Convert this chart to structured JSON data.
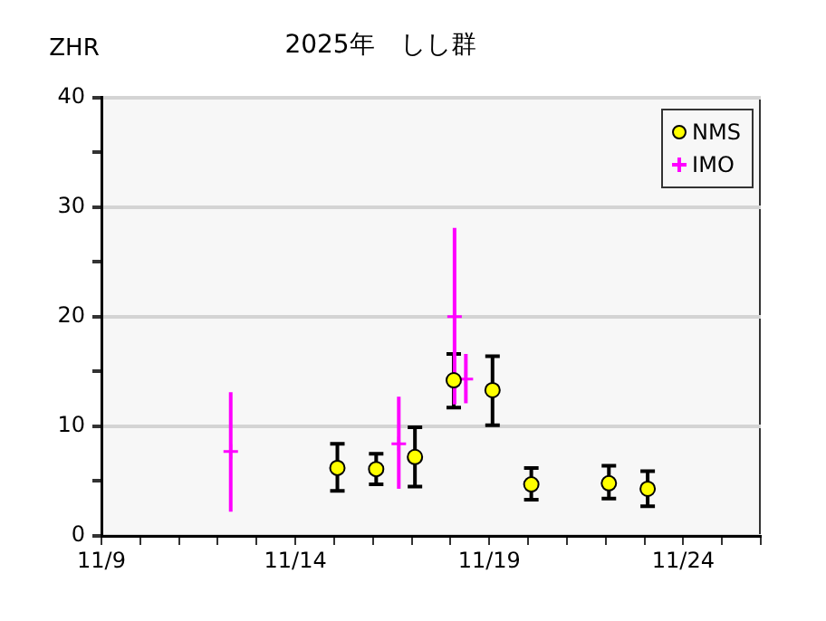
{
  "chart_data": {
    "type": "scatter",
    "title": "2025年　しし群",
    "ylabel": "ZHR",
    "xlim": [
      "--11-09",
      "--11-26"
    ],
    "xticks": [
      {
        "value": "--11-09",
        "label": "11/9"
      },
      {
        "value": "--11-10",
        "label": null
      },
      {
        "value": "--11-11",
        "label": null
      },
      {
        "value": "--11-12",
        "label": null
      },
      {
        "value": "--11-13",
        "label": null
      },
      {
        "value": "--11-14",
        "label": "11/14"
      },
      {
        "value": "--11-15",
        "label": null
      },
      {
        "value": "--11-16",
        "label": null
      },
      {
        "value": "--11-17",
        "label": null
      },
      {
        "value": "--11-18",
        "label": null
      },
      {
        "value": "--11-19",
        "label": "11/19"
      },
      {
        "value": "--11-20",
        "label": null
      },
      {
        "value": "--11-21",
        "label": null
      },
      {
        "value": "--11-22",
        "label": null
      },
      {
        "value": "--11-23",
        "label": null
      },
      {
        "value": "--11-24",
        "label": "11/24"
      },
      {
        "value": "--11-25",
        "label": null
      },
      {
        "value": "--11-26",
        "label": null
      }
    ],
    "ylim": [
      0,
      40
    ],
    "yticks": [
      0,
      {
        "value": 5,
        "label": null
      },
      10,
      {
        "value": 15,
        "label": null
      },
      20,
      {
        "value": 25,
        "label": null
      },
      30,
      {
        "value": 35,
        "label": null
      },
      40
    ],
    "grid": "y",
    "legend": "top right",
    "series": [
      {
        "name": "NMS",
        "color": "#ffff00",
        "marker": "circle",
        "x": [
          "--11-15T02:00",
          "--11-16T02:00",
          "--11-17T02:00",
          "--11-18T02:00",
          "--11-19T02:00",
          "--11-20T02:00",
          "--11-22T02:00",
          "--11-23T02:00"
        ],
        "values": [
          6.2,
          6.1,
          7.2,
          14.2,
          13.3,
          4.7,
          4.8,
          4.3
        ],
        "errors": [
          [
            4.1,
            8.4
          ],
          [
            4.7,
            7.5
          ],
          [
            4.5,
            9.9
          ],
          [
            11.7,
            16.6
          ],
          [
            10.1,
            16.4
          ],
          [
            3.3,
            6.2
          ],
          [
            3.4,
            6.4
          ],
          [
            2.7,
            5.9
          ]
        ]
      },
      {
        "name": "IMO",
        "color": "#ff00ff",
        "marker": "cross",
        "x": [
          "--11-12T08:00",
          "--11-16T16:00",
          "--11-18T02:30",
          "--11-18T09:30"
        ],
        "values": [
          7.7,
          8.4,
          20.0,
          14.3
        ],
        "errors": [
          [
            2.2,
            13.1
          ],
          [
            4.3,
            12.7
          ],
          [
            12.0,
            28.1
          ],
          [
            12.1,
            16.6
          ]
        ]
      }
    ]
  }
}
